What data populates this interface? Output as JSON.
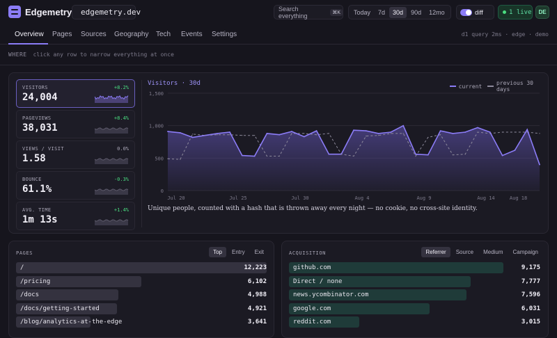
{
  "app": {
    "name": "Edgemetry",
    "site": "edgemetry.dev"
  },
  "search": {
    "placeholder": "Search everything",
    "shortcut": "⌘K"
  },
  "ranges": [
    {
      "label": "Today",
      "active": false
    },
    {
      "label": "7d",
      "active": false
    },
    {
      "label": "30d",
      "active": true
    },
    {
      "label": "90d",
      "active": false
    },
    {
      "label": "12mo",
      "active": false
    }
  ],
  "diff": {
    "label": "diff",
    "enabled": true
  },
  "live": {
    "label": "1 live"
  },
  "user": {
    "initials": "DE"
  },
  "nav": {
    "tabs": [
      "Overview",
      "Pages",
      "Sources",
      "Geography",
      "Tech",
      "Events",
      "Settings"
    ],
    "active": "Overview",
    "meta": "d1 query 2ms · edge · demo"
  },
  "where": {
    "label": "WHERE",
    "hint": "click any row to narrow everything at once"
  },
  "metrics": [
    {
      "label": "VISITORS",
      "value": "24,004",
      "delta": "+8.2%",
      "trend": "up",
      "active": true
    },
    {
      "label": "PAGEVIEWS",
      "value": "38,031",
      "delta": "+8.4%",
      "trend": "up",
      "active": false
    },
    {
      "label": "VIEWS / VISIT",
      "value": "1.58",
      "delta": "0.0%",
      "trend": "flat",
      "active": false
    },
    {
      "label": "BOUNCE",
      "value": "61.1%",
      "delta": "-0.3%",
      "trend": "good",
      "active": false
    },
    {
      "label": "AVG. TIME",
      "value": "1m 13s",
      "delta": "+1.4%",
      "trend": "up",
      "active": false
    }
  ],
  "chart": {
    "title": "Visitors · 30d",
    "legend_current": "current",
    "legend_previous": "previous 30 days",
    "caption": "Unique people, counted with a hash that is thrown away every night — no cookie, no cross-site identity."
  },
  "chart_data": {
    "type": "area",
    "ylim": [
      0,
      1500
    ],
    "yticks": [
      "1,500",
      "1,000",
      "500",
      "0"
    ],
    "xticks": [
      "Jul 20",
      "Jul 25",
      "Jul 30",
      "Aug 4",
      "Aug 9",
      "Aug 14",
      "Aug 18"
    ],
    "series": [
      {
        "name": "current",
        "values": [
          910,
          890,
          820,
          850,
          880,
          900,
          540,
          530,
          880,
          860,
          910,
          830,
          920,
          560,
          560,
          930,
          920,
          880,
          900,
          1000,
          560,
          550,
          920,
          880,
          900,
          970,
          900,
          540,
          620,
          940,
          400
        ]
      },
      {
        "name": "previous 30 days",
        "values": [
          490,
          480,
          870,
          850,
          860,
          860,
          850,
          850,
          530,
          530,
          880,
          880,
          860,
          880,
          560,
          530,
          840,
          850,
          880,
          880,
          530,
          820,
          860,
          550,
          560,
          900,
          880,
          900,
          900,
          900,
          880
        ]
      }
    ]
  },
  "pages": {
    "title": "PAGES",
    "tabs": [
      {
        "label": "Top",
        "active": true
      },
      {
        "label": "Entry",
        "active": false
      },
      {
        "label": "Exit",
        "active": false
      }
    ],
    "rows": [
      {
        "label": "/",
        "value": "12,223",
        "share": 1.0
      },
      {
        "label": "/pricing",
        "value": "6,102",
        "share": 0.499
      },
      {
        "label": "/docs",
        "value": "4,988",
        "share": 0.408
      },
      {
        "label": "/docs/getting-started",
        "value": "4,921",
        "share": 0.403
      },
      {
        "label": "/blog/analytics-at-the-edge",
        "value": "3,641",
        "share": 0.298
      }
    ]
  },
  "acquisition": {
    "title": "ACQUISITION",
    "tabs": [
      {
        "label": "Referrer",
        "active": true
      },
      {
        "label": "Source",
        "active": false
      },
      {
        "label": "Medium",
        "active": false
      },
      {
        "label": "Campaign",
        "active": false
      }
    ],
    "rows": [
      {
        "label": "github.com",
        "value": "9,175",
        "share": 1.0
      },
      {
        "label": "Direct / none",
        "value": "7,777",
        "share": 0.848
      },
      {
        "label": "news.ycombinator.com",
        "value": "7,596",
        "share": 0.828
      },
      {
        "label": "google.com",
        "value": "6,031",
        "share": 0.657
      },
      {
        "label": "reddit.com",
        "value": "3,015",
        "share": 0.329
      }
    ]
  },
  "colors": {
    "accent": "#8b7cf6",
    "positive": "#4ade80",
    "neutral": "#a9a6b6"
  }
}
